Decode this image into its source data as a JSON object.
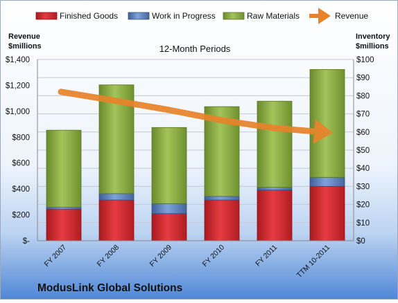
{
  "chart_data": {
    "type": "bar",
    "title": "12-Month Periods",
    "company": "ModusLink Global Solutions",
    "y_left_label": [
      "Revenue",
      "$millions"
    ],
    "y_right_label": [
      "Inventory",
      "$millions"
    ],
    "categories": [
      "FY 2007",
      "FY 2008",
      "FY 2009",
      "FY 2010",
      "FY 2011",
      "TTM 10-2011"
    ],
    "y_left_ticks": [
      "$-",
      "$200",
      "$400",
      "$600",
      "$800",
      "$1,000",
      "$1,200",
      "$1,400"
    ],
    "y_right_ticks": [
      "$0",
      "$10",
      "$20",
      "$30",
      "$40",
      "$50",
      "$60",
      "$70",
      "$80",
      "$90",
      "$100"
    ],
    "ylim_right": [
      0,
      100
    ],
    "ylim_left": [
      0,
      1400
    ],
    "stacking": "stacked",
    "series": [
      {
        "name": "Finished Goods",
        "axis": "right",
        "color": "#d9262e",
        "values": [
          17.5,
          22.5,
          15,
          22.5,
          28,
          30
        ]
      },
      {
        "name": "Work in Progress",
        "axis": "right",
        "color": "#5b84c4",
        "values": [
          1,
          3.5,
          5.5,
          2,
          1.5,
          5
        ]
      },
      {
        "name": "Raw Materials",
        "axis": "right",
        "color": "#8db23f",
        "values": [
          42.5,
          60,
          42,
          49.5,
          47.5,
          59.5
        ]
      },
      {
        "name": "Revenue",
        "axis": "left",
        "type": "line",
        "color": "#e8832a",
        "values": [
          1150,
          1080,
          1010,
          930,
          870,
          840
        ]
      }
    ],
    "legend_position": "top"
  }
}
